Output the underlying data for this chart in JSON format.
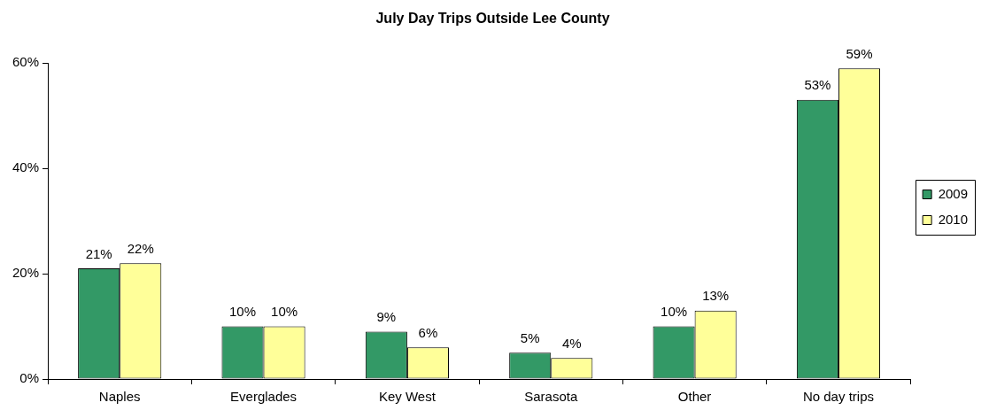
{
  "chart_data": {
    "type": "bar",
    "title": "July Day Trips Outside Lee County",
    "categories": [
      "Naples",
      "Everglades",
      "Key West",
      "Sarasota",
      "Other",
      "No day trips"
    ],
    "series": [
      {
        "name": "2009",
        "color": "#339966",
        "values": [
          21,
          10,
          9,
          5,
          10,
          53
        ],
        "value_labels": [
          "21%",
          "10%",
          "9%",
          "5%",
          "10%",
          "53%"
        ]
      },
      {
        "name": "2010",
        "color": "#ffff99",
        "values": [
          22,
          10,
          6,
          4,
          13,
          59
        ],
        "value_labels": [
          "22%",
          "10%",
          "6%",
          "4%",
          "13%",
          "59%"
        ]
      }
    ],
    "ylim": [
      0,
      60
    ],
    "yticks": [
      {
        "value": 0,
        "label": "0%"
      },
      {
        "value": 20,
        "label": "20%"
      },
      {
        "value": 40,
        "label": "40%"
      },
      {
        "value": 60,
        "label": "60%"
      }
    ],
    "grid": false,
    "legend": "right"
  }
}
